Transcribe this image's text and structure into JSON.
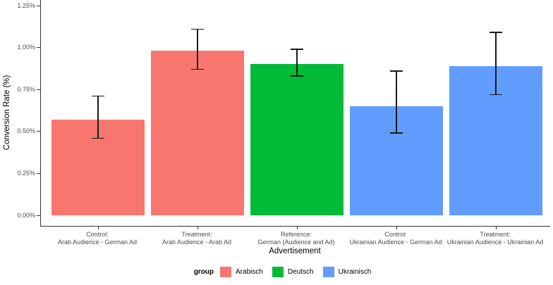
{
  "chart_data": {
    "type": "bar",
    "title": "",
    "xlabel": "Advertisement",
    "ylabel": "Conversion Rate (%)",
    "ylim": [
      0,
      1.25
    ],
    "grid": false,
    "error_bars": true,
    "yticks": [
      {
        "label": "0.00%",
        "value": 0
      },
      {
        "label": "0.25%",
        "value": 0.25
      },
      {
        "label": "0.50%",
        "value": 0.5
      },
      {
        "label": "0.75%",
        "value": 0.75
      },
      {
        "label": "1.00%",
        "value": 1.0
      },
      {
        "label": "1.25%",
        "value": 1.25
      }
    ],
    "bars": [
      {
        "label_line1": "Control:",
        "label_line2": "Arab Audience - German Ad",
        "group": "Arabisch",
        "value": 0.57,
        "ci_low": 0.46,
        "ci_high": 0.71
      },
      {
        "label_line1": "Treatment:",
        "label_line2": "Arab Audience - Arab Ad",
        "group": "Arabisch",
        "value": 0.98,
        "ci_low": 0.87,
        "ci_high": 1.11
      },
      {
        "label_line1": "Reference:",
        "label_line2": "German (Audience and Ad)",
        "group": "Deutsch",
        "value": 0.9,
        "ci_low": 0.83,
        "ci_high": 0.99
      },
      {
        "label_line1": "Control:",
        "label_line2": "Ukrainian Audience - German Ad",
        "group": "Ukrainisch",
        "value": 0.65,
        "ci_low": 0.49,
        "ci_high": 0.86
      },
      {
        "label_line1": "Treatment:",
        "label_line2": "Ukrainian Audience - Ukrainian Ad",
        "group": "Ukrainisch",
        "value": 0.89,
        "ci_low": 0.72,
        "ci_high": 1.09
      }
    ],
    "group_colors": {
      "Arabisch": "#F8766D",
      "Deutsch": "#00BA38",
      "Ukrainisch": "#619CFF"
    },
    "legend": {
      "title": "group",
      "position": "bottom",
      "entries": [
        {
          "label": "Arabisch",
          "color": "#F8766D"
        },
        {
          "label": "Deutsch",
          "color": "#00BA38"
        },
        {
          "label": "Ukrainisch",
          "color": "#619CFF"
        }
      ]
    }
  }
}
